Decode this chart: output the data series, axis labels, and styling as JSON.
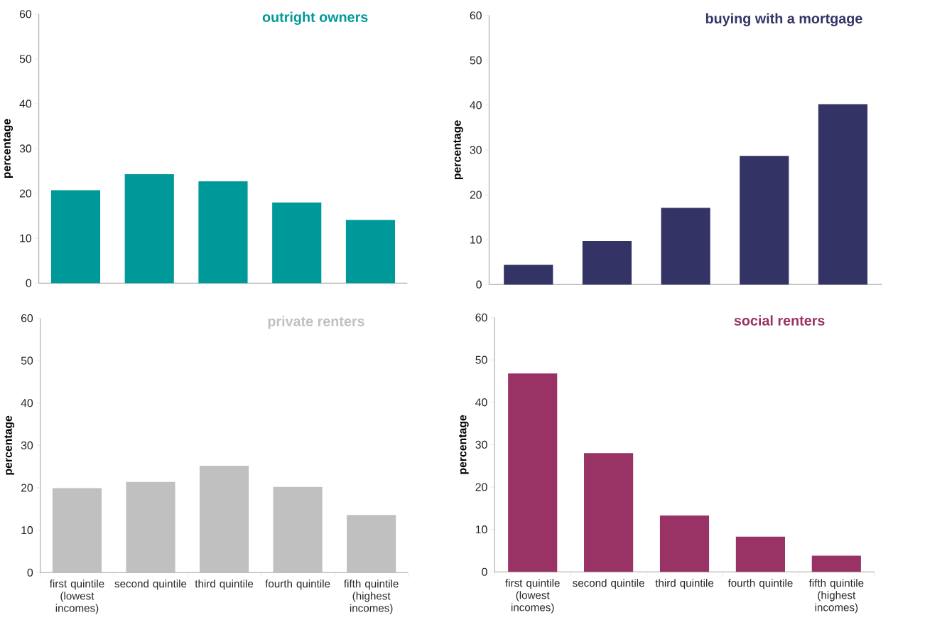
{
  "chart_data": [
    {
      "type": "bar",
      "title": "outright owners",
      "ylabel": "percentage",
      "categories": [
        null,
        null,
        null,
        null,
        null
      ],
      "values": [
        20.7,
        24.3,
        22.7,
        18.0,
        14.1
      ],
      "color": "#009999",
      "ylim": [
        0,
        60
      ],
      "yticks": [
        0,
        10,
        20,
        30,
        40,
        50,
        60
      ],
      "tick_labels": "y"
    },
    {
      "type": "bar",
      "title": "buying with a mortgage",
      "ylabel": "percentage",
      "categories": [
        null,
        null,
        null,
        null,
        null
      ],
      "values": [
        4.4,
        9.7,
        17.1,
        28.7,
        40.2
      ],
      "color": "#333366",
      "ylim": [
        0,
        60
      ],
      "yticks": [
        0,
        10,
        20,
        30,
        40,
        50,
        60
      ],
      "tick_labels": "y"
    },
    {
      "type": "bar",
      "title": "private renters",
      "ylabel": "percentage",
      "categories": [
        "first quintile (lowest incomes)",
        "second quintile",
        "third quintile",
        "fourth quintile",
        "fifth quintile (highest incomes)"
      ],
      "values": [
        19.9,
        21.4,
        25.2,
        20.2,
        13.6
      ],
      "color": "#c0c0c0",
      "ylim": [
        0,
        60
      ],
      "yticks": [
        0,
        10,
        20,
        30,
        40,
        50,
        60
      ]
    },
    {
      "type": "bar",
      "title": "social renters",
      "ylabel": "percentage",
      "categories": [
        "first quintile (lowest incomes)",
        "second quintile",
        "third quintile",
        "fourth quintile",
        "fifth quintile (highest incomes)"
      ],
      "values": [
        46.8,
        28.0,
        13.3,
        8.3,
        3.8
      ],
      "color": "#993366",
      "ylim": [
        0,
        60
      ],
      "yticks": [
        0,
        10,
        20,
        30,
        40,
        50,
        60
      ]
    }
  ]
}
